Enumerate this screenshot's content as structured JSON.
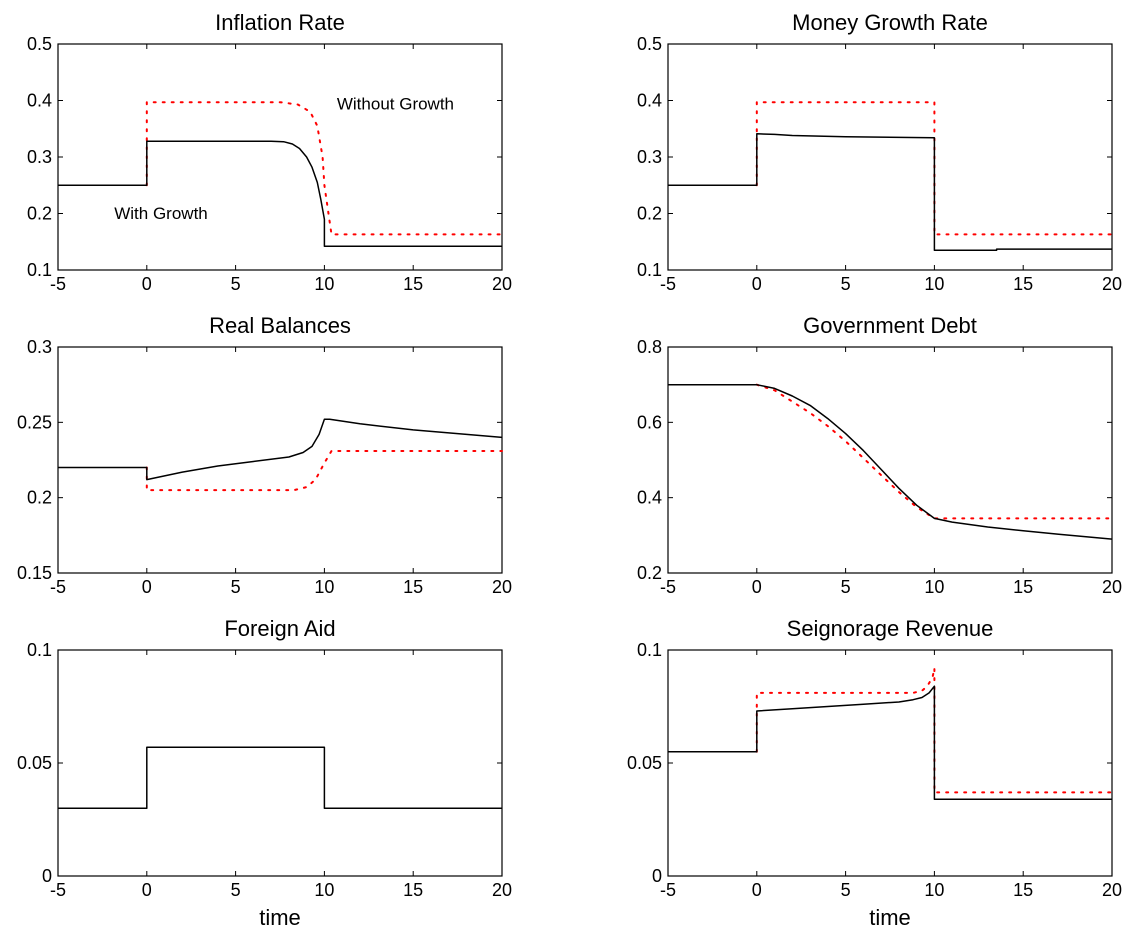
{
  "chart_data": [
    {
      "type": "line",
      "title": "Inflation Rate",
      "xlabel": "",
      "ylabel": "",
      "xlim": [
        -5,
        20
      ],
      "ylim": [
        0.1,
        0.5
      ],
      "xticks": [
        "-5",
        "0",
        "5",
        "10",
        "15",
        "20"
      ],
      "yticks": [
        "0.1",
        "0.2",
        "0.3",
        "0.4",
        "0.5"
      ],
      "grid": false,
      "annotations": [
        {
          "text": "Without Growth",
          "x": 14,
          "y": 0.384
        },
        {
          "text": "With Growth",
          "x": 0.8,
          "y": 0.19
        }
      ],
      "series": [
        {
          "name": "With Growth",
          "style": "solid",
          "color": "#000000",
          "x": [
            -5,
            0,
            0,
            7,
            7.7,
            8.2,
            8.6,
            9.0,
            9.3,
            9.6,
            9.8,
            10,
            10,
            20
          ],
          "y": [
            0.25,
            0.25,
            0.328,
            0.328,
            0.327,
            0.323,
            0.315,
            0.3,
            0.282,
            0.255,
            0.225,
            0.19,
            0.142,
            0.142
          ]
        },
        {
          "name": "Without Growth",
          "style": "dotted",
          "color": "#ff0000",
          "x": [
            0,
            0,
            7.5,
            8.5,
            9.2,
            9.6,
            9.9,
            10,
            10.4,
            20
          ],
          "y": [
            0.25,
            0.397,
            0.397,
            0.393,
            0.38,
            0.355,
            0.3,
            0.25,
            0.163,
            0.163
          ]
        }
      ]
    },
    {
      "type": "line",
      "title": "Money Growth Rate",
      "xlabel": "",
      "ylabel": "",
      "xlim": [
        -5,
        20
      ],
      "ylim": [
        0.1,
        0.5
      ],
      "xticks": [
        "-5",
        "0",
        "5",
        "10",
        "15",
        "20"
      ],
      "yticks": [
        "0.1",
        "0.2",
        "0.3",
        "0.4",
        "0.5"
      ],
      "grid": false,
      "series": [
        {
          "style": "solid",
          "color": "#000000",
          "x": [
            -5,
            0,
            0,
            1,
            2,
            5,
            10,
            10,
            13.5,
            13.5,
            20
          ],
          "y": [
            0.25,
            0.25,
            0.341,
            0.34,
            0.338,
            0.336,
            0.334,
            0.135,
            0.135,
            0.137,
            0.137
          ]
        },
        {
          "style": "dotted",
          "color": "#ff0000",
          "x": [
            0,
            0,
            10,
            10,
            20
          ],
          "y": [
            0.25,
            0.397,
            0.397,
            0.163,
            0.163
          ]
        }
      ]
    },
    {
      "type": "line",
      "title": "Real Balances",
      "xlabel": "",
      "ylabel": "",
      "xlim": [
        -5,
        20
      ],
      "ylim": [
        0.15,
        0.3
      ],
      "xticks": [
        "-5",
        "0",
        "5",
        "10",
        "15",
        "20"
      ],
      "yticks": [
        "0.15",
        "0.2",
        "0.25",
        "0.3"
      ],
      "grid": false,
      "series": [
        {
          "style": "solid",
          "color": "#000000",
          "x": [
            -5,
            0,
            0,
            2,
            4,
            6,
            8,
            8.8,
            9.3,
            9.7,
            10,
            10.3,
            12,
            15,
            18,
            20
          ],
          "y": [
            0.22,
            0.22,
            0.212,
            0.217,
            0.221,
            0.224,
            0.227,
            0.23,
            0.234,
            0.242,
            0.252,
            0.252,
            0.249,
            0.245,
            0.242,
            0.24
          ]
        },
        {
          "style": "dotted",
          "color": "#ff0000",
          "x": [
            0,
            0,
            8.3,
            9.0,
            9.5,
            10,
            10.4,
            20
          ],
          "y": [
            0.22,
            0.205,
            0.205,
            0.207,
            0.212,
            0.223,
            0.231,
            0.231
          ]
        }
      ]
    },
    {
      "type": "line",
      "title": "Government Debt",
      "xlabel": "",
      "ylabel": "",
      "xlim": [
        -5,
        20
      ],
      "ylim": [
        0.2,
        0.8
      ],
      "xticks": [
        "-5",
        "0",
        "5",
        "10",
        "15",
        "20"
      ],
      "yticks": [
        "0.2",
        "0.4",
        "0.6",
        "0.8"
      ],
      "grid": false,
      "series": [
        {
          "style": "solid",
          "color": "#000000",
          "x": [
            -5,
            0,
            1,
            2,
            3,
            4,
            5,
            6,
            7,
            8,
            9,
            10,
            11,
            13,
            15,
            17,
            20
          ],
          "y": [
            0.7,
            0.7,
            0.69,
            0.67,
            0.645,
            0.61,
            0.57,
            0.525,
            0.475,
            0.425,
            0.38,
            0.345,
            0.335,
            0.322,
            0.312,
            0.303,
            0.29
          ]
        },
        {
          "style": "dotted",
          "color": "#ff0000",
          "x": [
            0,
            1,
            2,
            3,
            4,
            5,
            6,
            7,
            8,
            9,
            10,
            10.5,
            20
          ],
          "y": [
            0.7,
            0.685,
            0.655,
            0.625,
            0.59,
            0.55,
            0.505,
            0.46,
            0.415,
            0.375,
            0.345,
            0.345,
            0.345
          ]
        }
      ]
    },
    {
      "type": "line",
      "title": "Foreign Aid",
      "xlabel": "time",
      "ylabel": "",
      "xlim": [
        -5,
        20
      ],
      "ylim": [
        0,
        0.1
      ],
      "xticks": [
        "-5",
        "0",
        "5",
        "10",
        "15",
        "20"
      ],
      "yticks": [
        "0",
        "0.05",
        "0.1"
      ],
      "grid": false,
      "series": [
        {
          "style": "solid",
          "color": "#000000",
          "x": [
            -5,
            0,
            0,
            10,
            10,
            20
          ],
          "y": [
            0.03,
            0.03,
            0.057,
            0.057,
            0.03,
            0.03
          ]
        }
      ]
    },
    {
      "type": "line",
      "title": "Seignorage Revenue",
      "xlabel": "time",
      "ylabel": "",
      "xlim": [
        -5,
        20
      ],
      "ylim": [
        0,
        0.1
      ],
      "xticks": [
        "-5",
        "0",
        "5",
        "10",
        "15",
        "20"
      ],
      "yticks": [
        "0",
        "0.05",
        "0.1"
      ],
      "grid": false,
      "series": [
        {
          "style": "solid",
          "color": "#000000",
          "x": [
            -5,
            0,
            0,
            2,
            4,
            6,
            8,
            8.8,
            9.3,
            9.7,
            10,
            10,
            20
          ],
          "y": [
            0.055,
            0.055,
            0.073,
            0.074,
            0.075,
            0.076,
            0.077,
            0.078,
            0.079,
            0.081,
            0.084,
            0.034,
            0.034
          ]
        },
        {
          "style": "dotted",
          "color": "#ff0000",
          "x": [
            0,
            0,
            8.8,
            9.3,
            9.6,
            9.9,
            10,
            10,
            20
          ],
          "y": [
            0.055,
            0.081,
            0.081,
            0.082,
            0.084,
            0.088,
            0.092,
            0.037,
            0.037
          ]
        }
      ]
    }
  ]
}
